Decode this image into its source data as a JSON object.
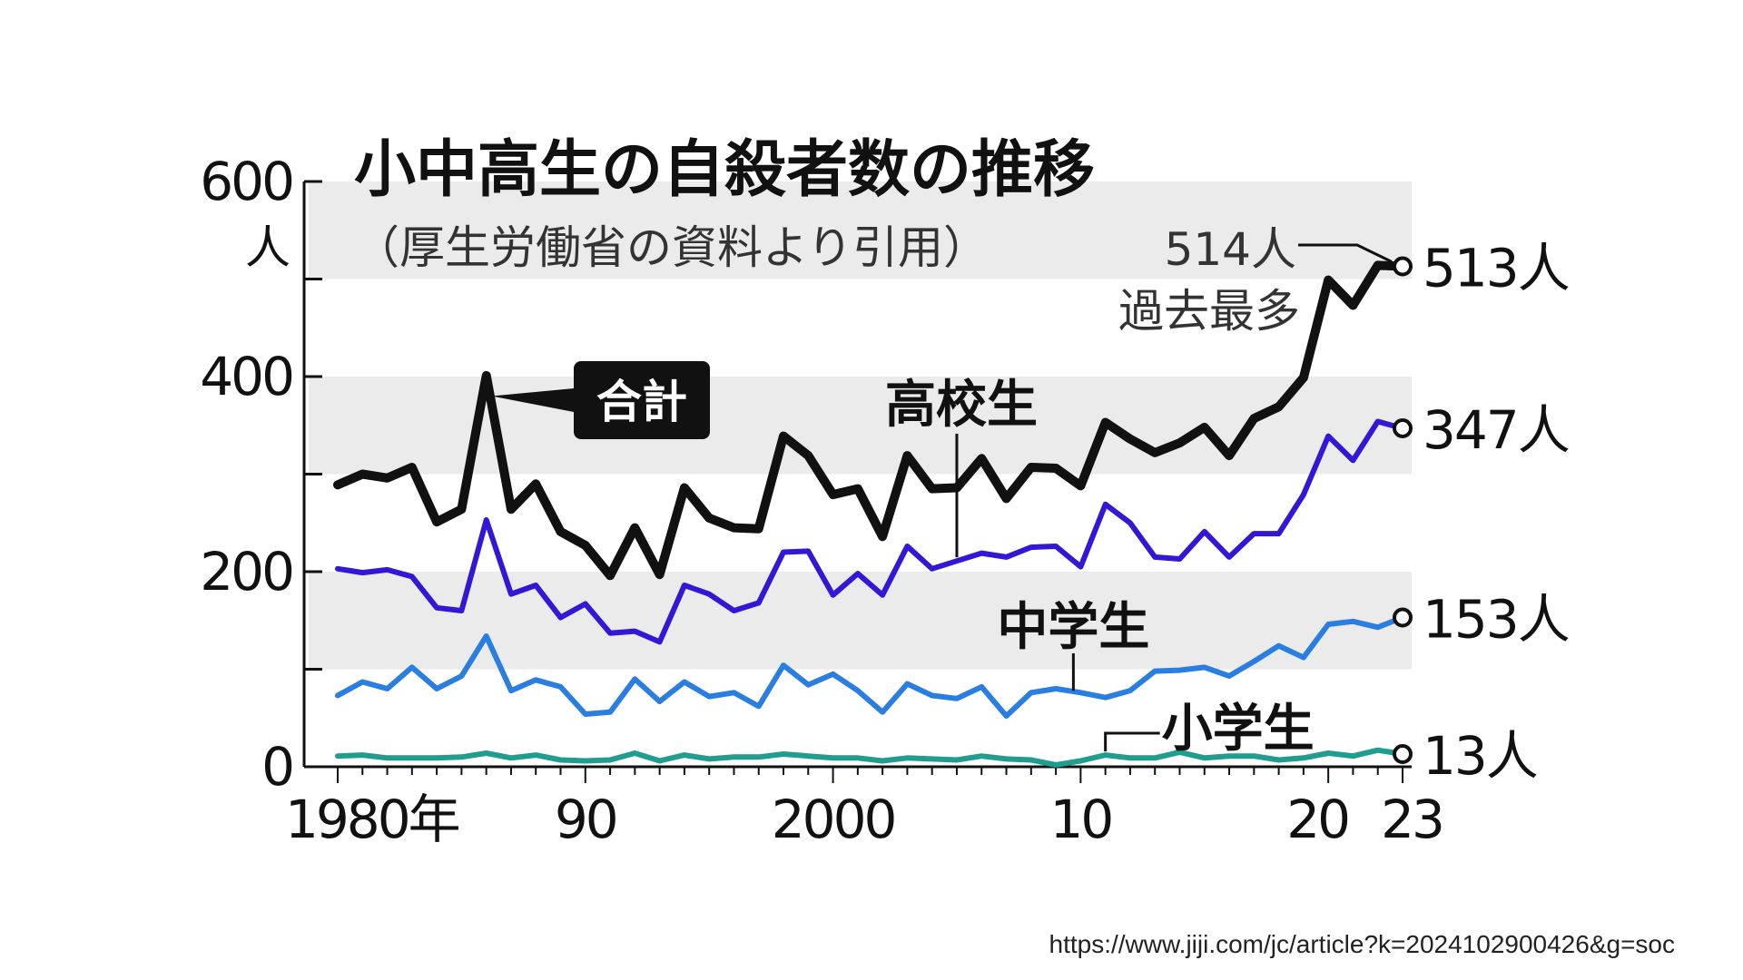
{
  "chart_data": {
    "type": "line",
    "title": "小中高生の自殺者数の推移",
    "subtitle": "（厚生労働省の資料より引用）",
    "y_unit": "人",
    "ylim": [
      0,
      600
    ],
    "y_ticks": [
      "0",
      "200",
      "400",
      "600"
    ],
    "x_ticks": [
      {
        "year": 1980,
        "label": "1980年"
      },
      {
        "year": 1990,
        "label": "90"
      },
      {
        "year": 2000,
        "label": "2000"
      },
      {
        "year": 2010,
        "label": "10"
      },
      {
        "year": 2020,
        "label": "20"
      },
      {
        "year": 2023,
        "label": "23"
      }
    ],
    "grid_bands": [
      [
        100,
        200
      ],
      [
        300,
        400
      ],
      [
        500,
        600
      ]
    ],
    "x": [
      1980,
      1981,
      1982,
      1983,
      1984,
      1985,
      1986,
      1987,
      1988,
      1989,
      1990,
      1991,
      1992,
      1993,
      1994,
      1995,
      1996,
      1997,
      1998,
      1999,
      2000,
      2001,
      2002,
      2003,
      2004,
      2005,
      2006,
      2007,
      2008,
      2009,
      2010,
      2011,
      2012,
      2013,
      2014,
      2015,
      2016,
      2017,
      2018,
      2019,
      2020,
      2021,
      2022,
      2023
    ],
    "series": [
      {
        "name": "合計",
        "color": "#111111",
        "end_label": "513人",
        "values": [
          289,
          300,
          296,
          307,
          251,
          264,
          401,
          264,
          290,
          241,
          227,
          196,
          245,
          197,
          286,
          255,
          245,
          244,
          339,
          319,
          279,
          285,
          236,
          319,
          285,
          286,
          316,
          275,
          307,
          306,
          288,
          353,
          336,
          322,
          332,
          348,
          319,
          357,
          369,
          399,
          499,
          473,
          514,
          513
        ]
      },
      {
        "name": "高校生",
        "color": "#3317d6",
        "end_label": "347人",
        "values": [
          203,
          199,
          202,
          195,
          163,
          160,
          253,
          177,
          186,
          153,
          167,
          137,
          139,
          128,
          186,
          177,
          160,
          168,
          220,
          221,
          176,
          198,
          176,
          226,
          203,
          211,
          219,
          215,
          225,
          226,
          205,
          269,
          250,
          215,
          213,
          241,
          215,
          239,
          239,
          279,
          339,
          314,
          354,
          347
        ]
      },
      {
        "name": "中学生",
        "color": "#2a7de1",
        "end_label": "153人",
        "values": [
          73,
          87,
          80,
          102,
          80,
          93,
          134,
          78,
          89,
          82,
          54,
          56,
          90,
          67,
          87,
          72,
          76,
          62,
          104,
          84,
          95,
          78,
          56,
          85,
          73,
          70,
          82,
          52,
          76,
          80,
          76,
          71,
          78,
          98,
          99,
          102,
          93,
          108,
          124,
          112,
          146,
          149,
          143,
          153
        ]
      },
      {
        "name": "小学生",
        "color": "#1f9e8f",
        "end_label": "13人",
        "values": [
          11,
          12,
          9,
          9,
          9,
          10,
          14,
          9,
          12,
          7,
          6,
          7,
          14,
          6,
          12,
          8,
          10,
          10,
          13,
          11,
          9,
          9,
          6,
          9,
          8,
          7,
          11,
          8,
          7,
          2,
          6,
          12,
          9,
          9,
          15,
          9,
          11,
          11,
          7,
          9,
          14,
          11,
          17,
          13
        ]
      }
    ],
    "annotations": {
      "record_value": "514人",
      "record_text": "過去最多"
    }
  },
  "source_url": "https://www.jiji.com/jc/article?k=2024102900426&g=soc"
}
